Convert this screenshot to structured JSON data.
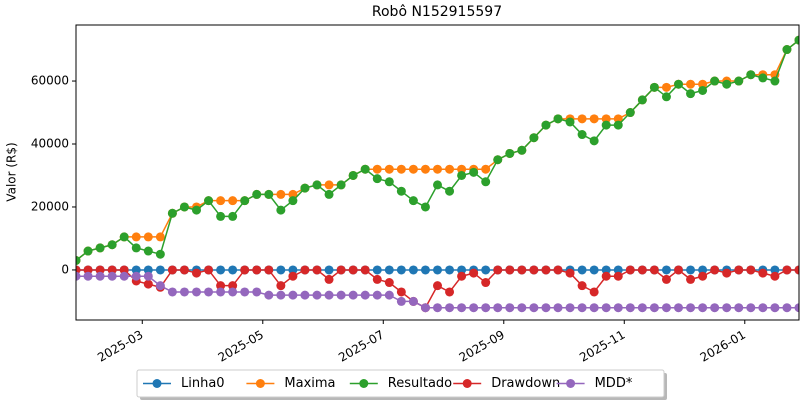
{
  "chart_data": {
    "type": "line",
    "title": "Robô N152915597",
    "ylabel": "Valor (R$)",
    "x": [
      0.9,
      1.1,
      1.3,
      1.5,
      1.7,
      1.9,
      2.1,
      2.3,
      2.5,
      2.7,
      2.9,
      3.1,
      3.3,
      3.5,
      3.7,
      3.9,
      4.1,
      4.3,
      4.5,
      4.7,
      4.9,
      5.1,
      5.3,
      5.5,
      5.7,
      5.9,
      6.1,
      6.3,
      6.5,
      6.7,
      6.9,
      7.1,
      7.3,
      7.5,
      7.7,
      7.9,
      8.1,
      8.3,
      8.5,
      8.7,
      8.9,
      9.1,
      9.3,
      9.5,
      9.7,
      9.9,
      10.1,
      10.3,
      10.5,
      10.7,
      10.9,
      11.1,
      11.3,
      11.5,
      11.7,
      11.9,
      12.1,
      12.3,
      12.5,
      12.7,
      12.9
    ],
    "series": [
      {
        "name": "Linha0",
        "color": "#1f77b4",
        "values": [
          0,
          0,
          0,
          0,
          0,
          0,
          0,
          0,
          0,
          0,
          0,
          0,
          0,
          0,
          0,
          0,
          0,
          0,
          0,
          0,
          0,
          0,
          0,
          0,
          0,
          0,
          0,
          0,
          0,
          0,
          0,
          0,
          0,
          0,
          0,
          0,
          0,
          0,
          0,
          0,
          0,
          0,
          0,
          0,
          0,
          0,
          0,
          0,
          0,
          0,
          0,
          0,
          0,
          0,
          0,
          0,
          0,
          0,
          0,
          0,
          0
        ]
      },
      {
        "name": "Maxima",
        "color": "#ff7f0e",
        "values": [
          3000,
          6000,
          7000,
          8000,
          10500,
          10500,
          10500,
          10500,
          18000,
          20000,
          20000,
          22000,
          22000,
          22000,
          22000,
          24000,
          24000,
          24000,
          24000,
          26000,
          27000,
          27000,
          27000,
          30000,
          32000,
          32000,
          32000,
          32000,
          32000,
          32000,
          32000,
          32000,
          32000,
          32000,
          32000,
          35000,
          37000,
          38000,
          42000,
          46000,
          48000,
          48000,
          48000,
          48000,
          48000,
          48000,
          50000,
          54000,
          58000,
          58000,
          59000,
          59000,
          59000,
          60000,
          60000,
          60000,
          62000,
          62000,
          62000,
          70000,
          73000
        ]
      },
      {
        "name": "Resultado",
        "color": "#2ca02c",
        "values": [
          3000,
          6000,
          7000,
          8000,
          10500,
          7000,
          6000,
          5000,
          18000,
          20000,
          19000,
          22000,
          17000,
          17000,
          22000,
          24000,
          24000,
          19000,
          22000,
          26000,
          27000,
          24000,
          27000,
          30000,
          32000,
          29000,
          28000,
          25000,
          22000,
          20000,
          27000,
          25000,
          30000,
          31000,
          28000,
          35000,
          37000,
          38000,
          42000,
          46000,
          48000,
          47000,
          43000,
          41000,
          46000,
          46000,
          50000,
          54000,
          58000,
          55000,
          59000,
          56000,
          57000,
          60000,
          59000,
          60000,
          62000,
          61000,
          60000,
          70000,
          73000
        ]
      },
      {
        "name": "Drawdown",
        "color": "#d62728",
        "values": [
          0,
          0,
          0,
          0,
          0,
          -3500,
          -4500,
          -5500,
          0,
          0,
          -1000,
          0,
          -5000,
          -5000,
          0,
          0,
          0,
          -5000,
          -2000,
          0,
          0,
          -3000,
          0,
          0,
          0,
          -3000,
          -4000,
          -7000,
          -10000,
          -12000,
          -5000,
          -7000,
          -2000,
          -1000,
          -4000,
          0,
          0,
          0,
          0,
          0,
          0,
          -1000,
          -5000,
          -7000,
          -2000,
          -2000,
          0,
          0,
          0,
          -3000,
          0,
          -3000,
          -2000,
          0,
          -1000,
          0,
          0,
          -1000,
          -2000,
          0,
          0
        ]
      },
      {
        "name": "MDD*",
        "color": "#9467bd",
        "values": [
          -2000,
          -2000,
          -2000,
          -2000,
          -2000,
          -2000,
          -2000,
          -5000,
          -7000,
          -7000,
          -7000,
          -7000,
          -7000,
          -7000,
          -7000,
          -7000,
          -8000,
          -8000,
          -8000,
          -8000,
          -8000,
          -8000,
          -8000,
          -8000,
          -8000,
          -8000,
          -8000,
          -10000,
          -10000,
          -12000,
          -12000,
          -12000,
          -12000,
          -12000,
          -12000,
          -12000,
          -12000,
          -12000,
          -12000,
          -12000,
          -12000,
          -12000,
          -12000,
          -12000,
          -12000,
          -12000,
          -12000,
          -12000,
          -12000,
          -12000,
          -12000,
          -12000,
          -12000,
          -12000,
          -12000,
          -12000,
          -12000,
          -12000,
          -12000,
          -12000,
          -12000
        ]
      }
    ],
    "xlim": [
      0.9,
      12.9
    ],
    "xticks": [
      {
        "value": 2,
        "label": "2025-03"
      },
      {
        "value": 4,
        "label": "2025-05"
      },
      {
        "value": 6,
        "label": "2025-07"
      },
      {
        "value": 8,
        "label": "2025-09"
      },
      {
        "value": 10,
        "label": "2025-11"
      },
      {
        "value": 12,
        "label": "2026-01"
      }
    ],
    "ylim": [
      -15900,
      77800
    ],
    "yticks": [
      0,
      20000,
      40000,
      60000
    ],
    "grid": false,
    "legend": "bottom"
  }
}
